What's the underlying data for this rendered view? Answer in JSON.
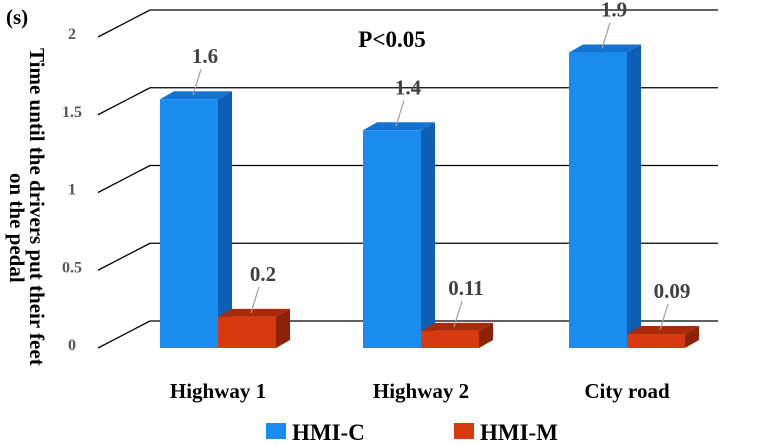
{
  "chart_data": {
    "type": "bar",
    "style": "3d-clustered",
    "unit_label": "(s)",
    "annotation": "P<0.05",
    "ylabel_line1": "Time until the drivers put their feet",
    "ylabel_line2": "on the pedal",
    "ylim": [
      0,
      2
    ],
    "y_ticks": [
      "0",
      "0.5",
      "1",
      "1.5",
      "2"
    ],
    "categories": [
      "Highway 1",
      "Highway 2",
      "City road"
    ],
    "series": [
      {
        "name": "HMI-C",
        "values": [
          1.6,
          1.4,
          1.9
        ],
        "labels": [
          "1.6",
          "1.4",
          "1.9"
        ],
        "color": "#1a8cf0",
        "top_color": "#1473d0",
        "side_color": "#0d5fb4"
      },
      {
        "name": "HMI-M",
        "values": [
          0.2,
          0.11,
          0.09
        ],
        "labels": [
          "0.2",
          "0.11",
          "0.09"
        ],
        "color": "#d83a10",
        "top_color": "#a82a08",
        "side_color": "#8c2206"
      }
    ],
    "grid": true,
    "legend_position": "bottom"
  }
}
